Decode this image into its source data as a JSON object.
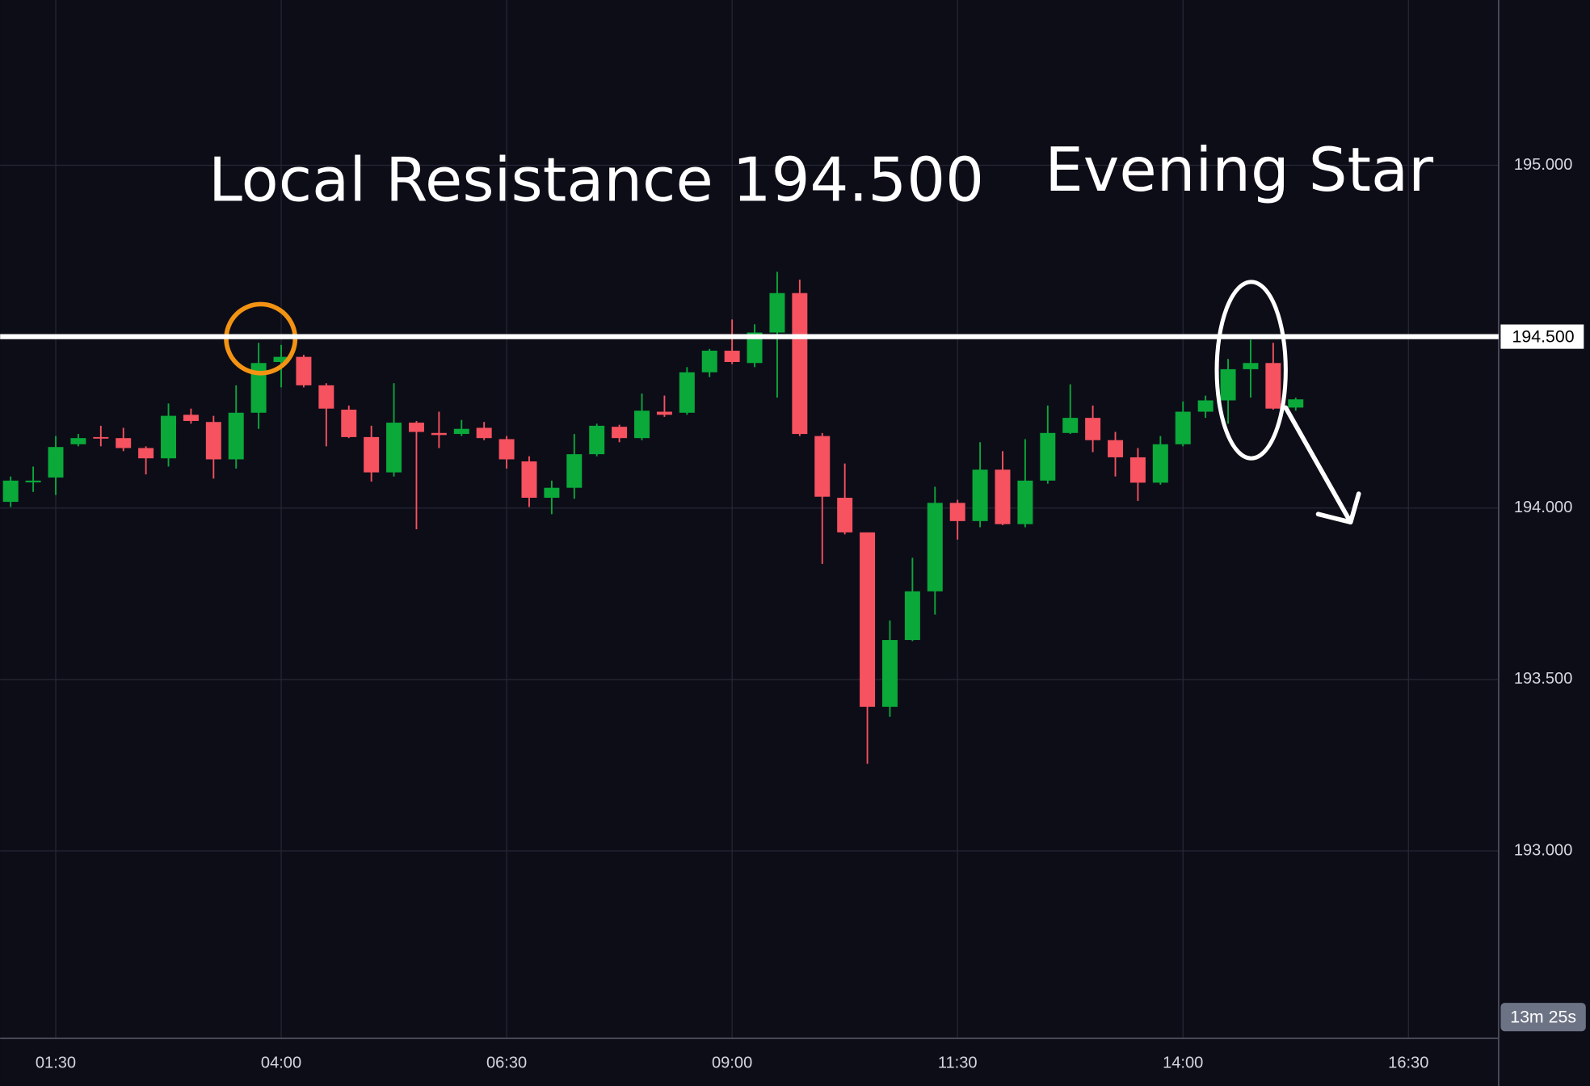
{
  "chart_data": {
    "type": "candlestick",
    "x": [
      "01:00",
      "01:15",
      "01:30",
      "01:45",
      "02:00",
      "02:15",
      "02:30",
      "02:45",
      "03:00",
      "03:15",
      "03:30",
      "03:45",
      "04:00",
      "04:15",
      "04:30",
      "04:45",
      "05:00",
      "05:15",
      "05:30",
      "05:45",
      "06:00",
      "06:15",
      "06:30",
      "06:45",
      "07:00",
      "07:15",
      "07:30",
      "07:45",
      "08:00",
      "08:15",
      "08:30",
      "08:45",
      "09:00",
      "09:15",
      "09:30",
      "09:45",
      "10:00",
      "10:15",
      "10:30",
      "10:45",
      "11:00",
      "11:15",
      "11:30",
      "11:45",
      "12:00",
      "12:15",
      "12:30",
      "12:45",
      "13:00",
      "13:15",
      "13:30",
      "13:45",
      "14:00",
      "14:15",
      "14:30",
      "14:45",
      "15:00",
      "15:15"
    ],
    "open": [
      194.018,
      194.075,
      194.089,
      194.186,
      194.207,
      194.204,
      194.175,
      194.145,
      194.272,
      194.251,
      194.142,
      194.278,
      194.426,
      194.441,
      194.358,
      194.287,
      194.207,
      194.104,
      194.249,
      194.219,
      194.216,
      194.234,
      194.201,
      194.136,
      194.03,
      194.059,
      194.157,
      194.237,
      194.204,
      194.281,
      194.278,
      194.396,
      194.459,
      194.423,
      194.512,
      194.627,
      194.21,
      194.03,
      193.929,
      193.42,
      193.615,
      193.757,
      194.015,
      193.962,
      194.112,
      193.953,
      194.08,
      194.219,
      194.263,
      194.198,
      194.148,
      194.074,
      194.186,
      194.281,
      194.314,
      194.405,
      194.423,
      194.293
    ],
    "high": [
      194.092,
      194.121,
      194.21,
      194.216,
      194.24,
      194.234,
      194.18,
      194.305,
      194.29,
      194.269,
      194.358,
      194.482,
      194.476,
      194.447,
      194.364,
      194.299,
      194.24,
      194.364,
      194.254,
      194.281,
      194.257,
      194.251,
      194.21,
      194.151,
      194.08,
      194.216,
      194.246,
      194.243,
      194.334,
      194.328,
      194.411,
      194.464,
      194.55,
      194.536,
      194.689,
      194.666,
      194.219,
      194.13,
      193.929,
      193.672,
      193.855,
      194.062,
      194.024,
      194.192,
      194.166,
      194.201,
      194.299,
      194.361,
      194.299,
      194.222,
      194.175,
      194.21,
      194.311,
      194.328,
      194.435,
      194.491,
      194.482,
      194.322
    ],
    "low": [
      194.003,
      194.047,
      194.038,
      194.18,
      194.18,
      194.166,
      194.098,
      194.121,
      194.246,
      194.086,
      194.115,
      194.231,
      194.352,
      194.352,
      194.18,
      194.204,
      194.077,
      194.092,
      193.938,
      194.175,
      194.21,
      194.198,
      194.115,
      194.003,
      193.982,
      194.027,
      194.151,
      194.192,
      194.198,
      194.266,
      194.272,
      194.382,
      194.42,
      194.411,
      194.322,
      194.21,
      193.837,
      193.923,
      193.254,
      193.391,
      193.612,
      193.689,
      193.908,
      193.944,
      193.95,
      193.944,
      194.071,
      194.216,
      194.163,
      194.092,
      194.021,
      194.068,
      194.18,
      194.263,
      194.246,
      194.322,
      194.287,
      194.284
    ],
    "close": [
      194.08,
      194.08,
      194.178,
      194.204,
      194.204,
      194.175,
      194.145,
      194.269,
      194.254,
      194.142,
      194.278,
      194.423,
      194.441,
      194.358,
      194.29,
      194.207,
      194.104,
      194.249,
      194.222,
      194.213,
      194.231,
      194.204,
      194.142,
      194.03,
      194.059,
      194.157,
      194.24,
      194.204,
      194.284,
      194.272,
      194.396,
      194.459,
      194.426,
      194.512,
      194.627,
      194.216,
      194.033,
      193.929,
      193.42,
      193.615,
      193.757,
      194.015,
      193.962,
      194.112,
      193.953,
      194.08,
      194.219,
      194.263,
      194.198,
      194.148,
      194.074,
      194.186,
      194.281,
      194.314,
      194.405,
      194.423,
      194.29,
      194.317
    ],
    "up_color": "#0aa93a",
    "down_color": "#f6525f",
    "xlim": [
      "00:53",
      "17:30"
    ],
    "xticks": [
      "01:30",
      "04:00",
      "06:30",
      "09:00",
      "11:30",
      "14:00",
      "16:30"
    ],
    "ylim": [
      192.453,
      195.482
    ],
    "yticks": [
      {
        "value": 193.0,
        "label": "193.000"
      },
      {
        "value": 193.5,
        "label": "193.500"
      },
      {
        "value": 194.0,
        "label": "194.000"
      },
      {
        "value": 195.0,
        "label": "195.000"
      }
    ],
    "grid": true,
    "resistance": {
      "value": 194.5,
      "label": "194.500"
    },
    "annotations": [
      "Local Resistance 194.500",
      "Evening Star"
    ],
    "countdown": "13m 25s"
  }
}
